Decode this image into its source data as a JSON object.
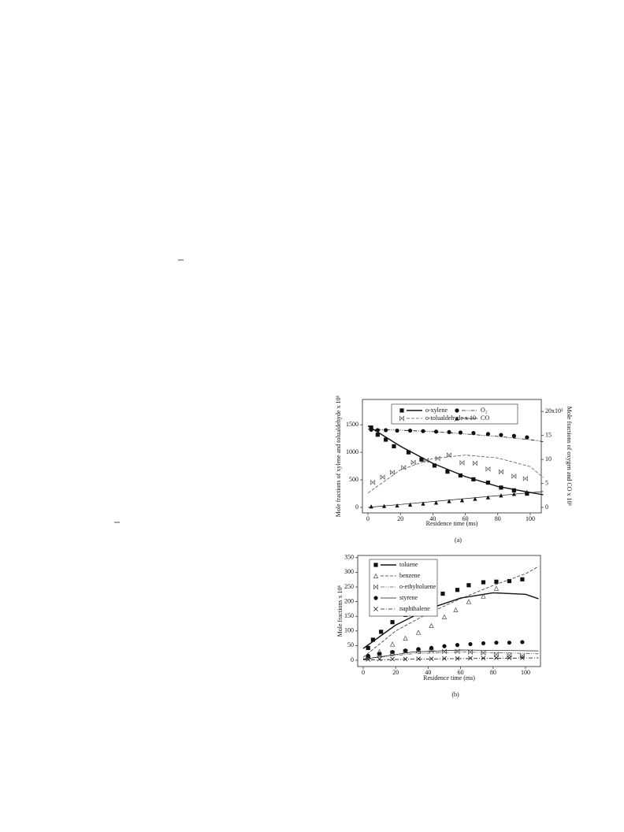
{
  "chart_data": [
    {
      "type": "scatter",
      "caption": "(a)",
      "xlabel": "Residence time (ms)",
      "ylabel": "Mole fractions of xylene and tolualdehyde x 10⁶",
      "y2label": "Mole fractions of oxygen and CO x 10⁶",
      "xlim": [
        -3.4,
        106.8
      ],
      "ylim": [
        -100,
        1960
      ],
      "y2lim": [
        -1.15,
        22.5
      ],
      "xticks": [
        0,
        20,
        40,
        60,
        80,
        100
      ],
      "yticks": [
        0,
        500,
        1000,
        1500
      ],
      "y2ticks": [
        0,
        5,
        10,
        15,
        {
          "value": 20,
          "label": "20x10³"
        }
      ],
      "legend": "top",
      "series": [
        {
          "name": "o-xylene",
          "marker": "square",
          "line": "solid",
          "color": "#111",
          "x": [
            2,
            6,
            11,
            16,
            25,
            33,
            41,
            49,
            57,
            65,
            74,
            82,
            90,
            98
          ],
          "values": [
            1450,
            1320,
            1230,
            1110,
            1000,
            870,
            760,
            650,
            580,
            510,
            450,
            360,
            310,
            250
          ],
          "fit_x": [
            0,
            20,
            40,
            60,
            80,
            100,
            108
          ],
          "fit_values": [
            1480,
            1110,
            800,
            560,
            380,
            270,
            230
          ]
        },
        {
          "name": "O₂",
          "marker": "circle",
          "line": "dash-dot-dot",
          "color": "#111",
          "axis": "y2",
          "x": [
            2,
            6,
            11,
            18,
            26,
            34,
            42,
            50,
            57,
            65,
            74,
            82,
            90,
            98
          ],
          "values": [
            16.2,
            16.1,
            16.1,
            16.0,
            16.0,
            15.9,
            15.8,
            15.7,
            15.6,
            15.5,
            15.3,
            15.1,
            14.9,
            14.6
          ],
          "fit_x": [
            0,
            20,
            40,
            60,
            80,
            100,
            108
          ],
          "fit_values": [
            16.3,
            16.1,
            15.8,
            15.3,
            14.8,
            14.1,
            13.7
          ]
        },
        {
          "name": "o-tolualdehyde x 10",
          "marker": "bowtie",
          "line": "dashed",
          "color": "#555",
          "axis": "y2",
          "x": [
            3,
            9,
            15,
            22,
            28,
            36,
            43,
            50,
            58,
            66,
            74,
            82,
            90,
            97
          ],
          "values": [
            5.2,
            6.3,
            7.3,
            8.3,
            9.4,
            9.8,
            10.2,
            10.9,
            9.3,
            9.2,
            8.0,
            7.4,
            6.5,
            6.0
          ],
          "fit_x": [
            0,
            20,
            40,
            60,
            80,
            100,
            108
          ],
          "fit_values": [
            3.0,
            7.8,
            10.2,
            10.9,
            10.3,
            8.5,
            6.2
          ]
        },
        {
          "name": "CO",
          "marker": "triangle",
          "line": "thin",
          "color": "#111",
          "axis": "y2",
          "x": [
            2,
            10,
            18,
            26,
            34,
            42,
            50,
            58,
            66,
            74,
            82,
            90,
            98
          ],
          "values": [
            0.2,
            0.3,
            0.4,
            0.6,
            0.8,
            1.0,
            1.3,
            1.5,
            1.8,
            2.1,
            2.5,
            2.8,
            3.2
          ],
          "fit_x": [
            0,
            108
          ],
          "fit_values": [
            0,
            3.3
          ]
        }
      ]
    },
    {
      "type": "scatter",
      "caption": "(b)",
      "xlabel": "Residence time (ms)",
      "ylabel": "Mole fractions x 10⁶",
      "xlim": [
        -3.4,
        109.2
      ],
      "ylim": [
        -21.5,
        357.5
      ],
      "xticks": [
        0,
        20,
        40,
        60,
        80,
        100
      ],
      "yticks": [
        0,
        50,
        100,
        150,
        200,
        250,
        300,
        350
      ],
      "legend": "upper left",
      "series": [
        {
          "name": "toluene",
          "marker": "square",
          "line": "solid",
          "color": "#111",
          "x": [
            3,
            6,
            11,
            18,
            26,
            33,
            42,
            49,
            58,
            65,
            74,
            82,
            90,
            98
          ],
          "values": [
            42,
            70,
            97,
            130,
            155,
            182,
            203,
            227,
            240,
            256,
            266,
            268,
            270,
            276
          ],
          "fit_x": [
            0,
            20,
            40,
            60,
            80,
            100,
            108
          ],
          "fit_values": [
            40,
            120,
            175,
            212,
            230,
            225,
            210
          ]
        },
        {
          "name": "benzene",
          "marker": "open-triangle",
          "line": "dashed",
          "color": "#333",
          "x": [
            3,
            10,
            18,
            26,
            34,
            42,
            50,
            57,
            65,
            74,
            82
          ],
          "values": [
            12,
            30,
            55,
            75,
            95,
            118,
            148,
            172,
            200,
            218,
            245
          ],
          "fit_x": [
            0,
            20,
            40,
            60,
            80,
            100,
            108
          ],
          "fit_values": [
            10,
            100,
            160,
            210,
            255,
            295,
            320
          ]
        },
        {
          "name": "o-ethyltoluene",
          "marker": "bowtie",
          "line": "dash-dot-dot",
          "color": "#555",
          "x": [
            3,
            10,
            18,
            26,
            34,
            42,
            50,
            58,
            66,
            74,
            82,
            90,
            98
          ],
          "values": [
            10,
            18,
            25,
            30,
            32,
            32,
            30,
            30,
            28,
            25,
            20,
            17,
            15
          ],
          "fit_x": [
            0,
            30,
            60,
            90,
            108
          ],
          "fit_values": [
            5,
            22,
            28,
            25,
            22
          ]
        },
        {
          "name": "styrene",
          "marker": "circle",
          "line": "thin",
          "color": "#111",
          "x": [
            3,
            10,
            18,
            26,
            34,
            42,
            50,
            58,
            66,
            74,
            82,
            90,
            98
          ],
          "values": [
            15,
            22,
            28,
            33,
            38,
            42,
            48,
            52,
            55,
            58,
            60,
            60,
            62
          ],
          "fit_x": [
            0,
            30,
            60,
            90,
            108
          ],
          "fit_values": [
            3,
            28,
            35,
            33,
            32
          ]
        },
        {
          "name": "naphthalene",
          "marker": "x",
          "line": "dash-dot",
          "color": "#111",
          "x": [
            3,
            10,
            18,
            26,
            34,
            42,
            50,
            58,
            66,
            74,
            82,
            90,
            98
          ],
          "values": [
            3,
            4,
            4,
            4,
            5,
            5,
            6,
            6,
            7,
            7,
            8,
            8,
            8
          ],
          "fit_x": [
            0,
            50,
            108
          ],
          "fit_values": [
            1,
            5,
            8
          ]
        }
      ]
    }
  ]
}
